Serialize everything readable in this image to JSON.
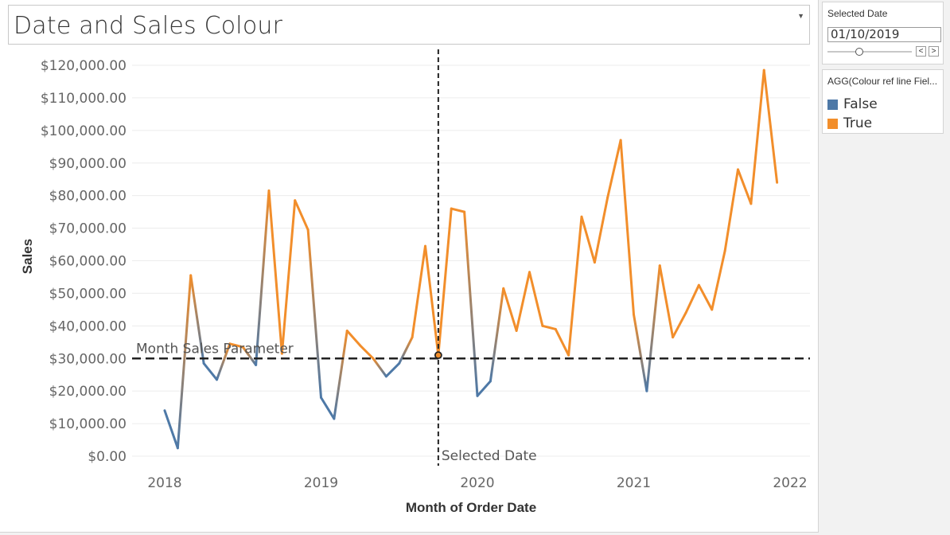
{
  "title": "Date and Sales Colour",
  "selected_date_panel": {
    "title": "Selected Date",
    "value": "01/10/2019",
    "slider_position": 0.38,
    "prev_label": "<",
    "next_label": ">"
  },
  "legend_panel": {
    "title": "AGG(Colour ref line Fiel...",
    "items": [
      {
        "label": "False",
        "color": "#4e79a7"
      },
      {
        "label": "True",
        "color": "#f28e2b"
      }
    ]
  },
  "chart_data": {
    "type": "line",
    "xlabel": "Month of Order Date",
    "ylabel": "Sales",
    "ylim": [
      0,
      120000
    ],
    "yticks": [
      0,
      10000,
      20000,
      30000,
      40000,
      50000,
      60000,
      70000,
      80000,
      90000,
      100000,
      110000,
      120000
    ],
    "ytick_labels": [
      "$0.00",
      "$10,000.00",
      "$20,000.00",
      "$30,000.00",
      "$40,000.00",
      "$50,000.00",
      "$60,000.00",
      "$70,000.00",
      "$80,000.00",
      "$90,000.00",
      "$100,000.00",
      "$110,000.00",
      "$120,000.00"
    ],
    "xticks": [
      "2018",
      "2019",
      "2020",
      "2021",
      "2022"
    ],
    "grid": true,
    "series": [
      {
        "name": "Sales",
        "points": [
          {
            "x": "2018-01",
            "y": 14000
          },
          {
            "x": "2018-02",
            "y": 2500
          },
          {
            "x": "2018-03",
            "y": 55500
          },
          {
            "x": "2018-04",
            "y": 28500
          },
          {
            "x": "2018-05",
            "y": 23500
          },
          {
            "x": "2018-06",
            "y": 34500
          },
          {
            "x": "2018-07",
            "y": 33500
          },
          {
            "x": "2018-08",
            "y": 28000
          },
          {
            "x": "2018-09",
            "y": 81500
          },
          {
            "x": "2018-10",
            "y": 31500
          },
          {
            "x": "2018-11",
            "y": 78500
          },
          {
            "x": "2018-12",
            "y": 69500
          },
          {
            "x": "2019-01",
            "y": 18000
          },
          {
            "x": "2019-02",
            "y": 11500
          },
          {
            "x": "2019-03",
            "y": 38500
          },
          {
            "x": "2019-04",
            "y": 34000
          },
          {
            "x": "2019-05",
            "y": 30000
          },
          {
            "x": "2019-06",
            "y": 24500
          },
          {
            "x": "2019-07",
            "y": 28500
          },
          {
            "x": "2019-08",
            "y": 36500
          },
          {
            "x": "2019-09",
            "y": 64500
          },
          {
            "x": "2019-10",
            "y": 31000
          },
          {
            "x": "2019-11",
            "y": 76000
          },
          {
            "x": "2019-12",
            "y": 75000
          },
          {
            "x": "2020-01",
            "y": 18500
          },
          {
            "x": "2020-02",
            "y": 23000
          },
          {
            "x": "2020-03",
            "y": 51500
          },
          {
            "x": "2020-04",
            "y": 38500
          },
          {
            "x": "2020-05",
            "y": 56500
          },
          {
            "x": "2020-06",
            "y": 40000
          },
          {
            "x": "2020-07",
            "y": 39000
          },
          {
            "x": "2020-08",
            "y": 31000
          },
          {
            "x": "2020-09",
            "y": 73500
          },
          {
            "x": "2020-10",
            "y": 59500
          },
          {
            "x": "2020-11",
            "y": 79500
          },
          {
            "x": "2020-12",
            "y": 97000
          },
          {
            "x": "2021-01",
            "y": 43500
          },
          {
            "x": "2021-02",
            "y": 20000
          },
          {
            "x": "2021-03",
            "y": 58500
          },
          {
            "x": "2021-04",
            "y": 36500
          },
          {
            "x": "2021-05",
            "y": 44000
          },
          {
            "x": "2021-06",
            "y": 52500
          },
          {
            "x": "2021-07",
            "y": 45000
          },
          {
            "x": "2021-08",
            "y": 63000
          },
          {
            "x": "2021-09",
            "y": 88000
          },
          {
            "x": "2021-10",
            "y": 77500
          },
          {
            "x": "2021-11",
            "y": 118500
          },
          {
            "x": "2021-12",
            "y": 84000
          }
        ]
      }
    ],
    "colour_rule": {
      "below": "False",
      "at_or_above": "True"
    },
    "reference_lines": [
      {
        "axis": "y",
        "value": 30000,
        "label": "Month Sales Parameter"
      },
      {
        "axis": "x",
        "value": "2019-10",
        "label": "Selected Date"
      }
    ],
    "highlight_point": {
      "x": "2019-10",
      "y": 31000
    }
  }
}
